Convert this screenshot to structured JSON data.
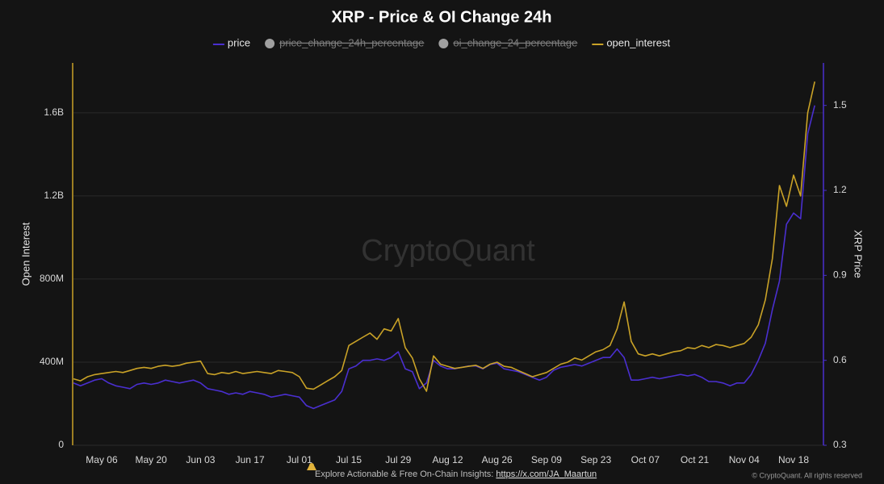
{
  "chart_data": {
    "type": "line",
    "title": "XRP - Price & OI Change 24h",
    "watermark": "CryptoQuant",
    "footer": {
      "text": "Explore Actionable & Free On-Chain Insights:",
      "link": "https://x.com/JA_Maartun",
      "copyright": "© CryptoQuant. All rights reserved"
    },
    "y_label": "Open Interest",
    "y2_label": "XRP Price",
    "grid": true,
    "categories": [
      null,
      null,
      null,
      null,
      "May 06",
      null,
      null,
      null,
      null,
      null,
      null,
      "May 20",
      null,
      null,
      null,
      null,
      null,
      null,
      "Jun 03",
      null,
      null,
      null,
      null,
      null,
      null,
      "Jun 17",
      null,
      null,
      null,
      null,
      null,
      null,
      "Jul 01",
      null,
      null,
      null,
      null,
      null,
      null,
      "Jul 15",
      null,
      null,
      null,
      null,
      null,
      null,
      "Jul 29",
      null,
      null,
      null,
      null,
      null,
      null,
      "Aug 12",
      null,
      null,
      null,
      null,
      null,
      null,
      "Aug 26",
      null,
      null,
      null,
      null,
      null,
      null,
      "Sep 09",
      null,
      null,
      null,
      null,
      null,
      null,
      "Sep 23",
      null,
      null,
      null,
      null,
      null,
      null,
      "Oct 07",
      null,
      null,
      null,
      null,
      null,
      null,
      "Oct 21",
      null,
      null,
      null,
      null,
      null,
      null,
      "Nov 04",
      null,
      null,
      null,
      null,
      null,
      null,
      "Nov 18",
      null,
      null,
      null
    ],
    "ylim": [
      0,
      1840000000
    ],
    "yticks": [
      0,
      {
        "value": 400000000,
        "label": "400M"
      },
      {
        "value": 800000000,
        "label": "800M"
      },
      {
        "value": 1200000000,
        "label": "1.2B"
      },
      {
        "value": 1600000000,
        "label": "1.6B"
      }
    ],
    "y2lim": [
      0.3,
      1.65
    ],
    "y2ticks": [
      0.3,
      0.6,
      0.9,
      1.2,
      1.5
    ],
    "series": [
      {
        "name": "price",
        "color": "#4a2fd0",
        "axis": "y2",
        "values": [
          0.52,
          0.51,
          0.52,
          0.53,
          0.535,
          0.52,
          0.51,
          0.505,
          0.5,
          0.515,
          0.52,
          0.515,
          0.52,
          0.53,
          0.525,
          0.52,
          0.525,
          0.53,
          0.52,
          0.5,
          0.495,
          0.49,
          0.48,
          0.485,
          0.48,
          0.49,
          0.485,
          0.48,
          0.47,
          0.475,
          0.48,
          0.475,
          0.47,
          0.44,
          0.43,
          0.44,
          0.45,
          0.46,
          0.49,
          0.57,
          0.58,
          0.6,
          0.6,
          0.605,
          0.6,
          0.61,
          0.63,
          0.57,
          0.56,
          0.5,
          0.52,
          0.6,
          0.58,
          0.57,
          0.57,
          0.575,
          0.58,
          0.58,
          0.57,
          0.585,
          0.59,
          0.57,
          0.565,
          0.56,
          0.55,
          0.54,
          0.53,
          0.54,
          0.565,
          0.575,
          0.58,
          0.585,
          0.58,
          0.59,
          0.6,
          0.61,
          0.61,
          0.64,
          0.61,
          0.53,
          0.53,
          0.535,
          0.54,
          0.535,
          0.54,
          0.545,
          0.55,
          0.545,
          0.55,
          0.54,
          0.525,
          0.525,
          0.52,
          0.51,
          0.52,
          0.52,
          0.55,
          0.6,
          0.66,
          0.78,
          0.88,
          1.08,
          1.12,
          1.1,
          1.4,
          1.5
        ]
      },
      {
        "name": "price_change_24h_percentage",
        "color": "#a0a0a0",
        "hidden": true
      },
      {
        "name": "oi_change_24_percentage",
        "color": "#a0a0a0",
        "hidden": true
      },
      {
        "name": "open_interest",
        "color": "#c9a227",
        "values": [
          320000000,
          310000000,
          330000000,
          340000000,
          345000000,
          350000000,
          355000000,
          350000000,
          360000000,
          370000000,
          375000000,
          370000000,
          380000000,
          385000000,
          380000000,
          385000000,
          395000000,
          400000000,
          405000000,
          345000000,
          340000000,
          350000000,
          345000000,
          355000000,
          345000000,
          350000000,
          355000000,
          350000000,
          345000000,
          360000000,
          355000000,
          350000000,
          330000000,
          275000000,
          270000000,
          290000000,
          310000000,
          330000000,
          360000000,
          480000000,
          500000000,
          520000000,
          540000000,
          510000000,
          560000000,
          550000000,
          610000000,
          470000000,
          420000000,
          320000000,
          260000000,
          430000000,
          390000000,
          380000000,
          370000000,
          375000000,
          380000000,
          385000000,
          370000000,
          390000000,
          400000000,
          380000000,
          375000000,
          360000000,
          345000000,
          330000000,
          340000000,
          350000000,
          370000000,
          390000000,
          400000000,
          420000000,
          410000000,
          430000000,
          450000000,
          460000000,
          480000000,
          560000000,
          690000000,
          500000000,
          440000000,
          430000000,
          440000000,
          430000000,
          440000000,
          450000000,
          455000000,
          470000000,
          465000000,
          480000000,
          470000000,
          485000000,
          480000000,
          470000000,
          480000000,
          490000000,
          520000000,
          580000000,
          700000000,
          900000000,
          1250000000,
          1150000000,
          1300000000,
          1200000000,
          1600000000,
          1750000000
        ]
      }
    ]
  }
}
